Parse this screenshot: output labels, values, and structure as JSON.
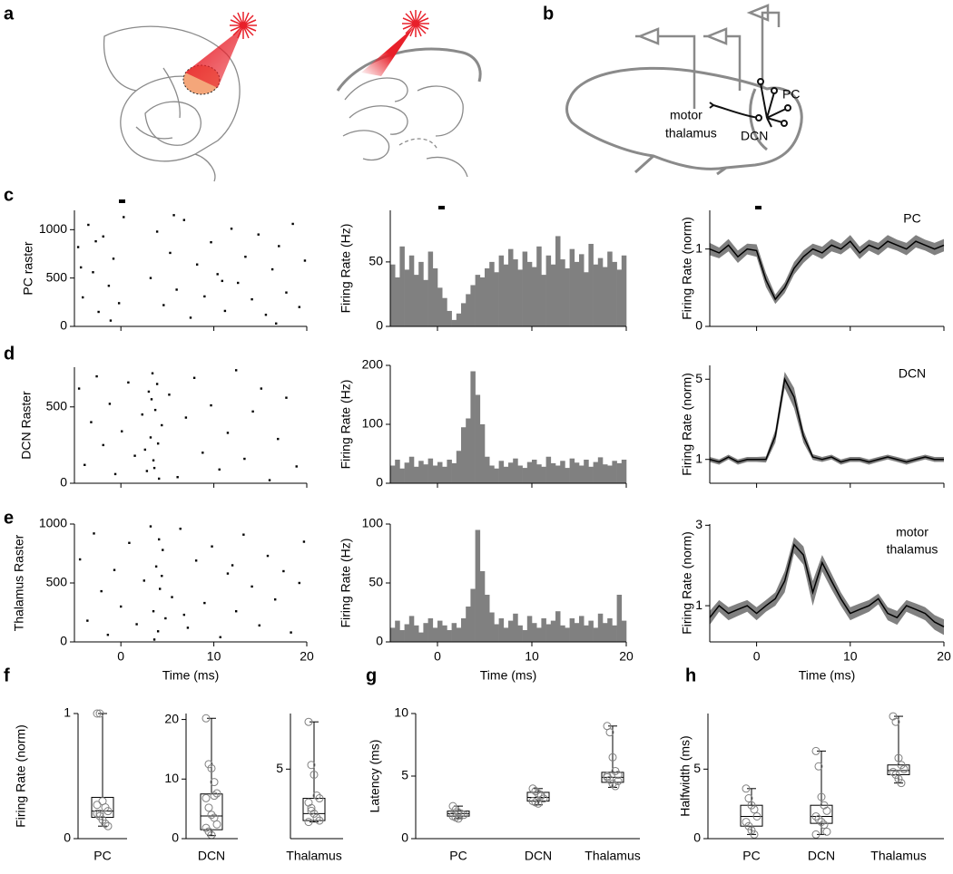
{
  "figure": {
    "panel_labels": [
      "a",
      "b",
      "c",
      "d",
      "e",
      "f",
      "g",
      "h"
    ],
    "diagram_b": {
      "pc": "PC",
      "motor_thalamus": [
        "motor",
        "thalamus"
      ],
      "dcn": "DCN"
    }
  },
  "chart_data": [
    {
      "type": "scatter",
      "ylabel": "PC raster",
      "color": "#000000",
      "xtick_labels": false,
      "x": [
        -4.6,
        -4.1,
        -3.5,
        -3.0,
        -2.4,
        -1.9,
        -1.3,
        -0.8,
        -0.2,
        0.3,
        -4.3,
        -2.7,
        -1.1,
        3.2,
        3.9,
        4.6,
        5.3,
        6.0,
        6.8,
        7.5,
        8.2,
        9.0,
        9.7,
        10.4,
        11.2,
        11.9,
        12.6,
        13.4,
        14.1,
        14.8,
        15.6,
        16.3,
        17.0,
        17.8,
        18.5,
        19.2,
        19.8,
        5.7,
        10.9,
        16.7
      ],
      "y": [
        820,
        300,
        1050,
        560,
        150,
        930,
        420,
        700,
        240,
        1130,
        610,
        880,
        60,
        500,
        980,
        220,
        760,
        380,
        1100,
        90,
        640,
        310,
        870,
        540,
        160,
        1010,
        450,
        720,
        280,
        950,
        120,
        590,
        830,
        350,
        1060,
        200,
        680,
        1150,
        470,
        30
      ],
      "xlim": [
        -5,
        20
      ],
      "xticks": [
        0,
        10,
        20
      ],
      "ylim": [
        0,
        1200
      ],
      "yticks": [
        0,
        500,
        1000
      ]
    },
    {
      "type": "histogram",
      "ylabel": "Firing Rate (Hz)",
      "color": "#808080",
      "xtick_labels": false,
      "bins": [
        -5,
        -4.5,
        -4,
        -3.5,
        -3,
        -2.5,
        -2,
        -1.5,
        -1,
        -0.5,
        0,
        0.5,
        1,
        1.5,
        2,
        2.5,
        3,
        3.5,
        4,
        4.5,
        5,
        5.5,
        6,
        6.5,
        7,
        7.5,
        8,
        8.5,
        9,
        9.5,
        10,
        10.5,
        11,
        11.5,
        12,
        12.5,
        13,
        13.5,
        14,
        14.5,
        15,
        15.5,
        16,
        16.5,
        17,
        17.5,
        18,
        18.5,
        19,
        19.5,
        20
      ],
      "values": [
        48,
        38,
        62,
        44,
        55,
        40,
        50,
        36,
        58,
        45,
        30,
        22,
        12,
        5,
        10,
        18,
        25,
        32,
        40,
        38,
        45,
        50,
        42,
        55,
        48,
        60,
        52,
        44,
        58,
        50,
        46,
        62,
        40,
        55,
        48,
        70,
        52,
        45,
        60,
        50,
        56,
        42,
        64,
        48,
        53,
        46,
        58,
        50,
        44,
        55
      ],
      "xlim": [
        -5,
        20
      ],
      "xticks": [
        0,
        10,
        20
      ],
      "ylim": [
        0,
        90
      ],
      "yticks": [
        0,
        50
      ]
    },
    {
      "type": "line",
      "ylabel": "Firing Rate (norm)",
      "annotation": [
        "PC"
      ],
      "color": "#000000",
      "band_color": "#808080",
      "xtick_labels": false,
      "x": [
        -5,
        -4,
        -3,
        -2,
        -1,
        0,
        1,
        2,
        3,
        4,
        5,
        6,
        7,
        8,
        9,
        10,
        11,
        12,
        13,
        14,
        15,
        16,
        17,
        18,
        19,
        20
      ],
      "values": [
        1.0,
        0.95,
        1.05,
        0.9,
        1.0,
        0.98,
        0.6,
        0.35,
        0.5,
        0.75,
        0.9,
        1.0,
        0.95,
        1.05,
        1.0,
        1.1,
        0.95,
        1.05,
        1.0,
        1.1,
        1.05,
        1.0,
        1.1,
        1.05,
        1.0,
        1.05
      ],
      "error": [
        0.08,
        0.07,
        0.08,
        0.08,
        0.07,
        0.08,
        0.09,
        0.06,
        0.07,
        0.08,
        0.08,
        0.07,
        0.08,
        0.08,
        0.07,
        0.08,
        0.08,
        0.07,
        0.08,
        0.08,
        0.07,
        0.08,
        0.08,
        0.07,
        0.08,
        0.08
      ],
      "xlim": [
        -5,
        20
      ],
      "xticks": [
        0,
        10,
        20
      ],
      "ylim": [
        0,
        1.5
      ],
      "yticks": [
        0,
        1
      ]
    },
    {
      "type": "scatter",
      "ylabel": "DCN Raster",
      "color": "#000000",
      "xtick_labels": false,
      "x": [
        -4.5,
        -3.9,
        -3.2,
        -2.6,
        -1.9,
        -1.2,
        -0.6,
        0.1,
        0.8,
        1.5,
        2.3,
        2.8,
        3.0,
        3.2,
        3.4,
        3.5,
        3.7,
        3.9,
        4.1,
        4.4,
        2.6,
        3.3,
        3.6,
        4.0,
        5.2,
        6.1,
        7.0,
        7.9,
        8.8,
        9.7,
        10.6,
        11.5,
        12.4,
        13.3,
        14.2,
        15.1,
        16.0,
        16.9,
        17.8,
        18.9
      ],
      "y": [
        620,
        120,
        400,
        700,
        250,
        520,
        60,
        340,
        660,
        180,
        450,
        80,
        600,
        300,
        720,
        150,
        480,
        650,
        30,
        380,
        220,
        550,
        100,
        260,
        580,
        40,
        430,
        690,
        200,
        510,
        90,
        330,
        740,
        160,
        470,
        620,
        20,
        290,
        560,
        110
      ],
      "xlim": [
        -5,
        20
      ],
      "xticks": [
        0,
        10,
        20
      ],
      "ylim": [
        0,
        760
      ],
      "yticks": [
        0,
        500
      ]
    },
    {
      "type": "histogram",
      "ylabel": "Firing Rate (Hz)",
      "color": "#808080",
      "xtick_labels": false,
      "bins": [
        -5,
        -4.5,
        -4,
        -3.5,
        -3,
        -2.5,
        -2,
        -1.5,
        -1,
        -0.5,
        0,
        0.5,
        1,
        1.5,
        2,
        2.5,
        3,
        3.5,
        4,
        4.5,
        5,
        5.5,
        6,
        6.5,
        7,
        7.5,
        8,
        8.5,
        9,
        9.5,
        10,
        10.5,
        11,
        11.5,
        12,
        12.5,
        13,
        13.5,
        14,
        14.5,
        15,
        15.5,
        16,
        16.5,
        17,
        17.5,
        18,
        18.5,
        19,
        19.5,
        20
      ],
      "values": [
        30,
        40,
        25,
        35,
        45,
        28,
        38,
        32,
        42,
        30,
        36,
        28,
        40,
        34,
        55,
        95,
        110,
        190,
        150,
        100,
        45,
        30,
        25,
        38,
        28,
        35,
        42,
        30,
        26,
        36,
        40,
        32,
        28,
        45,
        34,
        30,
        38,
        26,
        42,
        35,
        30,
        40,
        28,
        36,
        44,
        32,
        30,
        38,
        34,
        40
      ],
      "xlim": [
        -5,
        20
      ],
      "xticks": [
        0,
        10,
        20
      ],
      "ylim": [
        0,
        200
      ],
      "yticks": [
        0,
        100,
        200
      ]
    },
    {
      "type": "line",
      "ylabel": "Firing Rate (norm)",
      "annotation": [
        "DCN"
      ],
      "color": "#000000",
      "band_color": "#808080",
      "xtick_labels": false,
      "log": true,
      "x": [
        -5,
        -4,
        -3,
        -2,
        -1,
        0,
        1,
        2,
        3,
        4,
        5,
        6,
        7,
        8,
        9,
        10,
        11,
        12,
        13,
        14,
        15,
        16,
        17,
        18,
        19,
        20
      ],
      "values": [
        1.0,
        0.95,
        1.05,
        0.95,
        1.0,
        1.0,
        1.0,
        1.6,
        5.0,
        3.5,
        1.6,
        1.05,
        1.0,
        1.05,
        0.95,
        1.0,
        1.0,
        0.95,
        1.0,
        1.05,
        1.0,
        0.95,
        1.0,
        1.05,
        1.0,
        1.0
      ],
      "error": [
        0.05,
        0.05,
        0.05,
        0.05,
        0.05,
        0.05,
        0.06,
        0.2,
        0.8,
        0.7,
        0.2,
        0.06,
        0.05,
        0.05,
        0.05,
        0.05,
        0.05,
        0.05,
        0.05,
        0.05,
        0.05,
        0.05,
        0.05,
        0.05,
        0.05,
        0.05
      ],
      "xlim": [
        -5,
        20
      ],
      "xticks": [
        0,
        10,
        20
      ],
      "ylim": [
        0.62,
        6.6
      ],
      "yticks": [
        1,
        5
      ]
    },
    {
      "type": "scatter",
      "ylabel": "Thalamus Raster",
      "xlabel": "Time (ms)",
      "color": "#000000",
      "xtick_labels": true,
      "x": [
        -4.4,
        -3.6,
        -2.9,
        -2.1,
        -1.4,
        -0.7,
        0.0,
        0.9,
        1.7,
        2.5,
        3.2,
        3.5,
        3.8,
        4.0,
        4.2,
        4.5,
        4.8,
        3.6,
        4.1,
        4.4,
        5.5,
        6.4,
        7.2,
        8.1,
        9.0,
        9.8,
        10.7,
        11.5,
        12.4,
        13.2,
        14.1,
        14.9,
        15.8,
        16.6,
        17.5,
        18.3,
        19.2,
        19.7,
        6.8,
        12.0
      ],
      "y": [
        700,
        180,
        920,
        430,
        60,
        610,
        300,
        840,
        150,
        520,
        980,
        260,
        640,
        90,
        450,
        780,
        200,
        20,
        870,
        560,
        380,
        960,
        120,
        690,
        330,
        810,
        40,
        580,
        260,
        910,
        470,
        140,
        730,
        360,
        600,
        80,
        500,
        850,
        230,
        650
      ],
      "xlim": [
        -5,
        20
      ],
      "xticks": [
        0,
        10,
        20
      ],
      "ylim": [
        0,
        1000
      ],
      "yticks": [
        0,
        500,
        1000
      ]
    },
    {
      "type": "histogram",
      "ylabel": "Firing Rate (Hz)",
      "xlabel": "Time (ms)",
      "color": "#808080",
      "xtick_labels": true,
      "bins": [
        -5,
        -4.5,
        -4,
        -3.5,
        -3,
        -2.5,
        -2,
        -1.5,
        -1,
        -0.5,
        0,
        0.5,
        1,
        1.5,
        2,
        2.5,
        3,
        3.5,
        4,
        4.5,
        5,
        5.5,
        6,
        6.5,
        7,
        7.5,
        8,
        8.5,
        9,
        9.5,
        10,
        10.5,
        11,
        11.5,
        12,
        12.5,
        13,
        13.5,
        14,
        14.5,
        15,
        15.5,
        16,
        16.5,
        17,
        17.5,
        18,
        18.5,
        19,
        19.5,
        20
      ],
      "values": [
        12,
        18,
        10,
        15,
        22,
        14,
        8,
        16,
        20,
        12,
        18,
        14,
        10,
        16,
        12,
        20,
        30,
        45,
        95,
        60,
        40,
        25,
        15,
        20,
        12,
        18,
        24,
        14,
        10,
        22,
        16,
        12,
        20,
        15,
        18,
        26,
        14,
        12,
        20,
        16,
        22,
        14,
        18,
        12,
        24,
        16,
        20,
        14,
        40,
        18
      ],
      "xlim": [
        -5,
        20
      ],
      "xticks": [
        0,
        10,
        20
      ],
      "ylim": [
        0,
        100
      ],
      "yticks": [
        0,
        50,
        100
      ]
    },
    {
      "type": "line",
      "ylabel": "Firing Rate (norm)",
      "xlabel": "Time (ms)",
      "annotation": [
        "motor",
        "thalamus"
      ],
      "color": "#000000",
      "band_color": "#808080",
      "xtick_labels": true,
      "log": true,
      "x": [
        -5,
        -4,
        -3,
        -2,
        -1,
        0,
        1,
        2,
        3,
        4,
        5,
        6,
        7,
        8,
        9,
        10,
        11,
        12,
        13,
        14,
        15,
        16,
        17,
        18,
        19,
        20
      ],
      "values": [
        0.85,
        1.0,
        0.9,
        0.95,
        1.0,
        0.9,
        1.0,
        1.1,
        1.4,
        2.3,
        2.0,
        1.2,
        1.8,
        1.4,
        1.1,
        0.9,
        0.95,
        1.0,
        1.1,
        0.9,
        0.85,
        1.0,
        0.95,
        0.9,
        0.8,
        0.75
      ],
      "error": [
        0.08,
        0.08,
        0.08,
        0.08,
        0.08,
        0.08,
        0.08,
        0.1,
        0.2,
        0.25,
        0.25,
        0.2,
        0.2,
        0.15,
        0.1,
        0.08,
        0.08,
        0.08,
        0.08,
        0.08,
        0.08,
        0.08,
        0.08,
        0.08,
        0.08,
        0.08
      ],
      "xlim": [
        -5,
        20
      ],
      "xticks": [
        0,
        10,
        20
      ],
      "ylim": [
        0.61,
        3.05
      ],
      "yticks": [
        1,
        3
      ]
    },
    {
      "type": "box",
      "ylabel": "Firing Rate (norm)",
      "color": "#000000",
      "point_color": "#808080",
      "categories": [
        "PC"
      ],
      "boxes": [
        {
          "min": 0.1,
          "q1": 0.17,
          "median": 0.22,
          "q3": 0.33,
          "max": 1.0,
          "points": [
            1.0,
            1.0,
            0.3,
            0.25,
            0.22,
            0.2,
            0.18,
            0.15,
            0.12,
            0.1,
            0.27,
            0.2
          ]
        }
      ],
      "ylim": [
        0,
        1
      ],
      "yticks": [
        0,
        1
      ]
    },
    {
      "type": "box",
      "color": "#000000",
      "point_color": "#808080",
      "categories": [
        "DCN"
      ],
      "boxes": [
        {
          "min": 0.5,
          "q1": 1.5,
          "median": 3.8,
          "q3": 7.5,
          "max": 20.2,
          "points": [
            20.2,
            12.5,
            11.8,
            9.5,
            7.6,
            6.8,
            5.2,
            4.0,
            3.5,
            2.4,
            1.8,
            1.2,
            0.6,
            7.2
          ]
        }
      ],
      "ylim": [
        0,
        21
      ],
      "yticks": [
        0,
        10,
        20
      ]
    },
    {
      "type": "box",
      "color": "#000000",
      "point_color": "#808080",
      "categories": [
        "Thalamus"
      ],
      "boxes": [
        {
          "min": 1.2,
          "q1": 1.3,
          "median": 1.8,
          "q3": 2.9,
          "max": 8.4,
          "points": [
            8.4,
            5.3,
            4.6,
            3.1,
            2.9,
            2.6,
            2.2,
            1.8,
            1.5,
            1.3,
            1.2,
            2.0
          ]
        }
      ],
      "ylim": [
        0,
        9
      ],
      "yticks": [
        5
      ]
    },
    {
      "type": "box",
      "ylabel": "Latency (ms)",
      "color": "#000000",
      "point_color": "#808080",
      "categories": [
        "PC",
        "DCN",
        "Thalamus"
      ],
      "boxes": [
        {
          "min": 1.6,
          "q1": 1.8,
          "median": 2.0,
          "q3": 2.2,
          "max": 2.6,
          "points": [
            2.6,
            2.3,
            2.1,
            2.0,
            1.9,
            1.8,
            1.7,
            1.6
          ]
        },
        {
          "min": 2.7,
          "q1": 3.0,
          "median": 3.3,
          "q3": 3.7,
          "max": 4.0,
          "points": [
            4.0,
            3.8,
            3.6,
            3.4,
            3.2,
            3.0,
            2.9,
            2.8,
            3.5
          ]
        },
        {
          "min": 4.1,
          "q1": 4.5,
          "median": 4.9,
          "q3": 5.3,
          "max": 9.0,
          "points": [
            9.0,
            8.5,
            6.5,
            5.4,
            5.1,
            4.9,
            4.7,
            4.4,
            4.2,
            4.6,
            5.0
          ]
        }
      ],
      "ylim": [
        0,
        10
      ],
      "yticks": [
        0,
        5,
        10
      ]
    },
    {
      "type": "box",
      "ylabel": "Halfwidth (ms)",
      "color": "#000000",
      "point_color": "#808080",
      "categories": [
        "PC",
        "DCN",
        "Thalamus"
      ],
      "boxes": [
        {
          "min": 0.3,
          "q1": 0.9,
          "median": 1.6,
          "q3": 2.4,
          "max": 3.6,
          "points": [
            3.6,
            2.9,
            2.4,
            2.1,
            1.6,
            1.2,
            0.9,
            0.6,
            0.3
          ]
        },
        {
          "min": 0.3,
          "q1": 1.1,
          "median": 1.6,
          "q3": 2.4,
          "max": 6.3,
          "points": [
            6.3,
            5.2,
            3.0,
            2.4,
            2.0,
            1.6,
            1.4,
            1.2,
            1.0,
            0.5,
            0.3
          ]
        },
        {
          "min": 4.0,
          "q1": 4.6,
          "median": 4.9,
          "q3": 5.3,
          "max": 8.8,
          "points": [
            8.8,
            8.4,
            5.8,
            5.3,
            5.0,
            4.8,
            4.6,
            4.3,
            4.0
          ]
        }
      ],
      "ylim": [
        0,
        9
      ],
      "yticks": [
        0,
        5
      ]
    }
  ]
}
